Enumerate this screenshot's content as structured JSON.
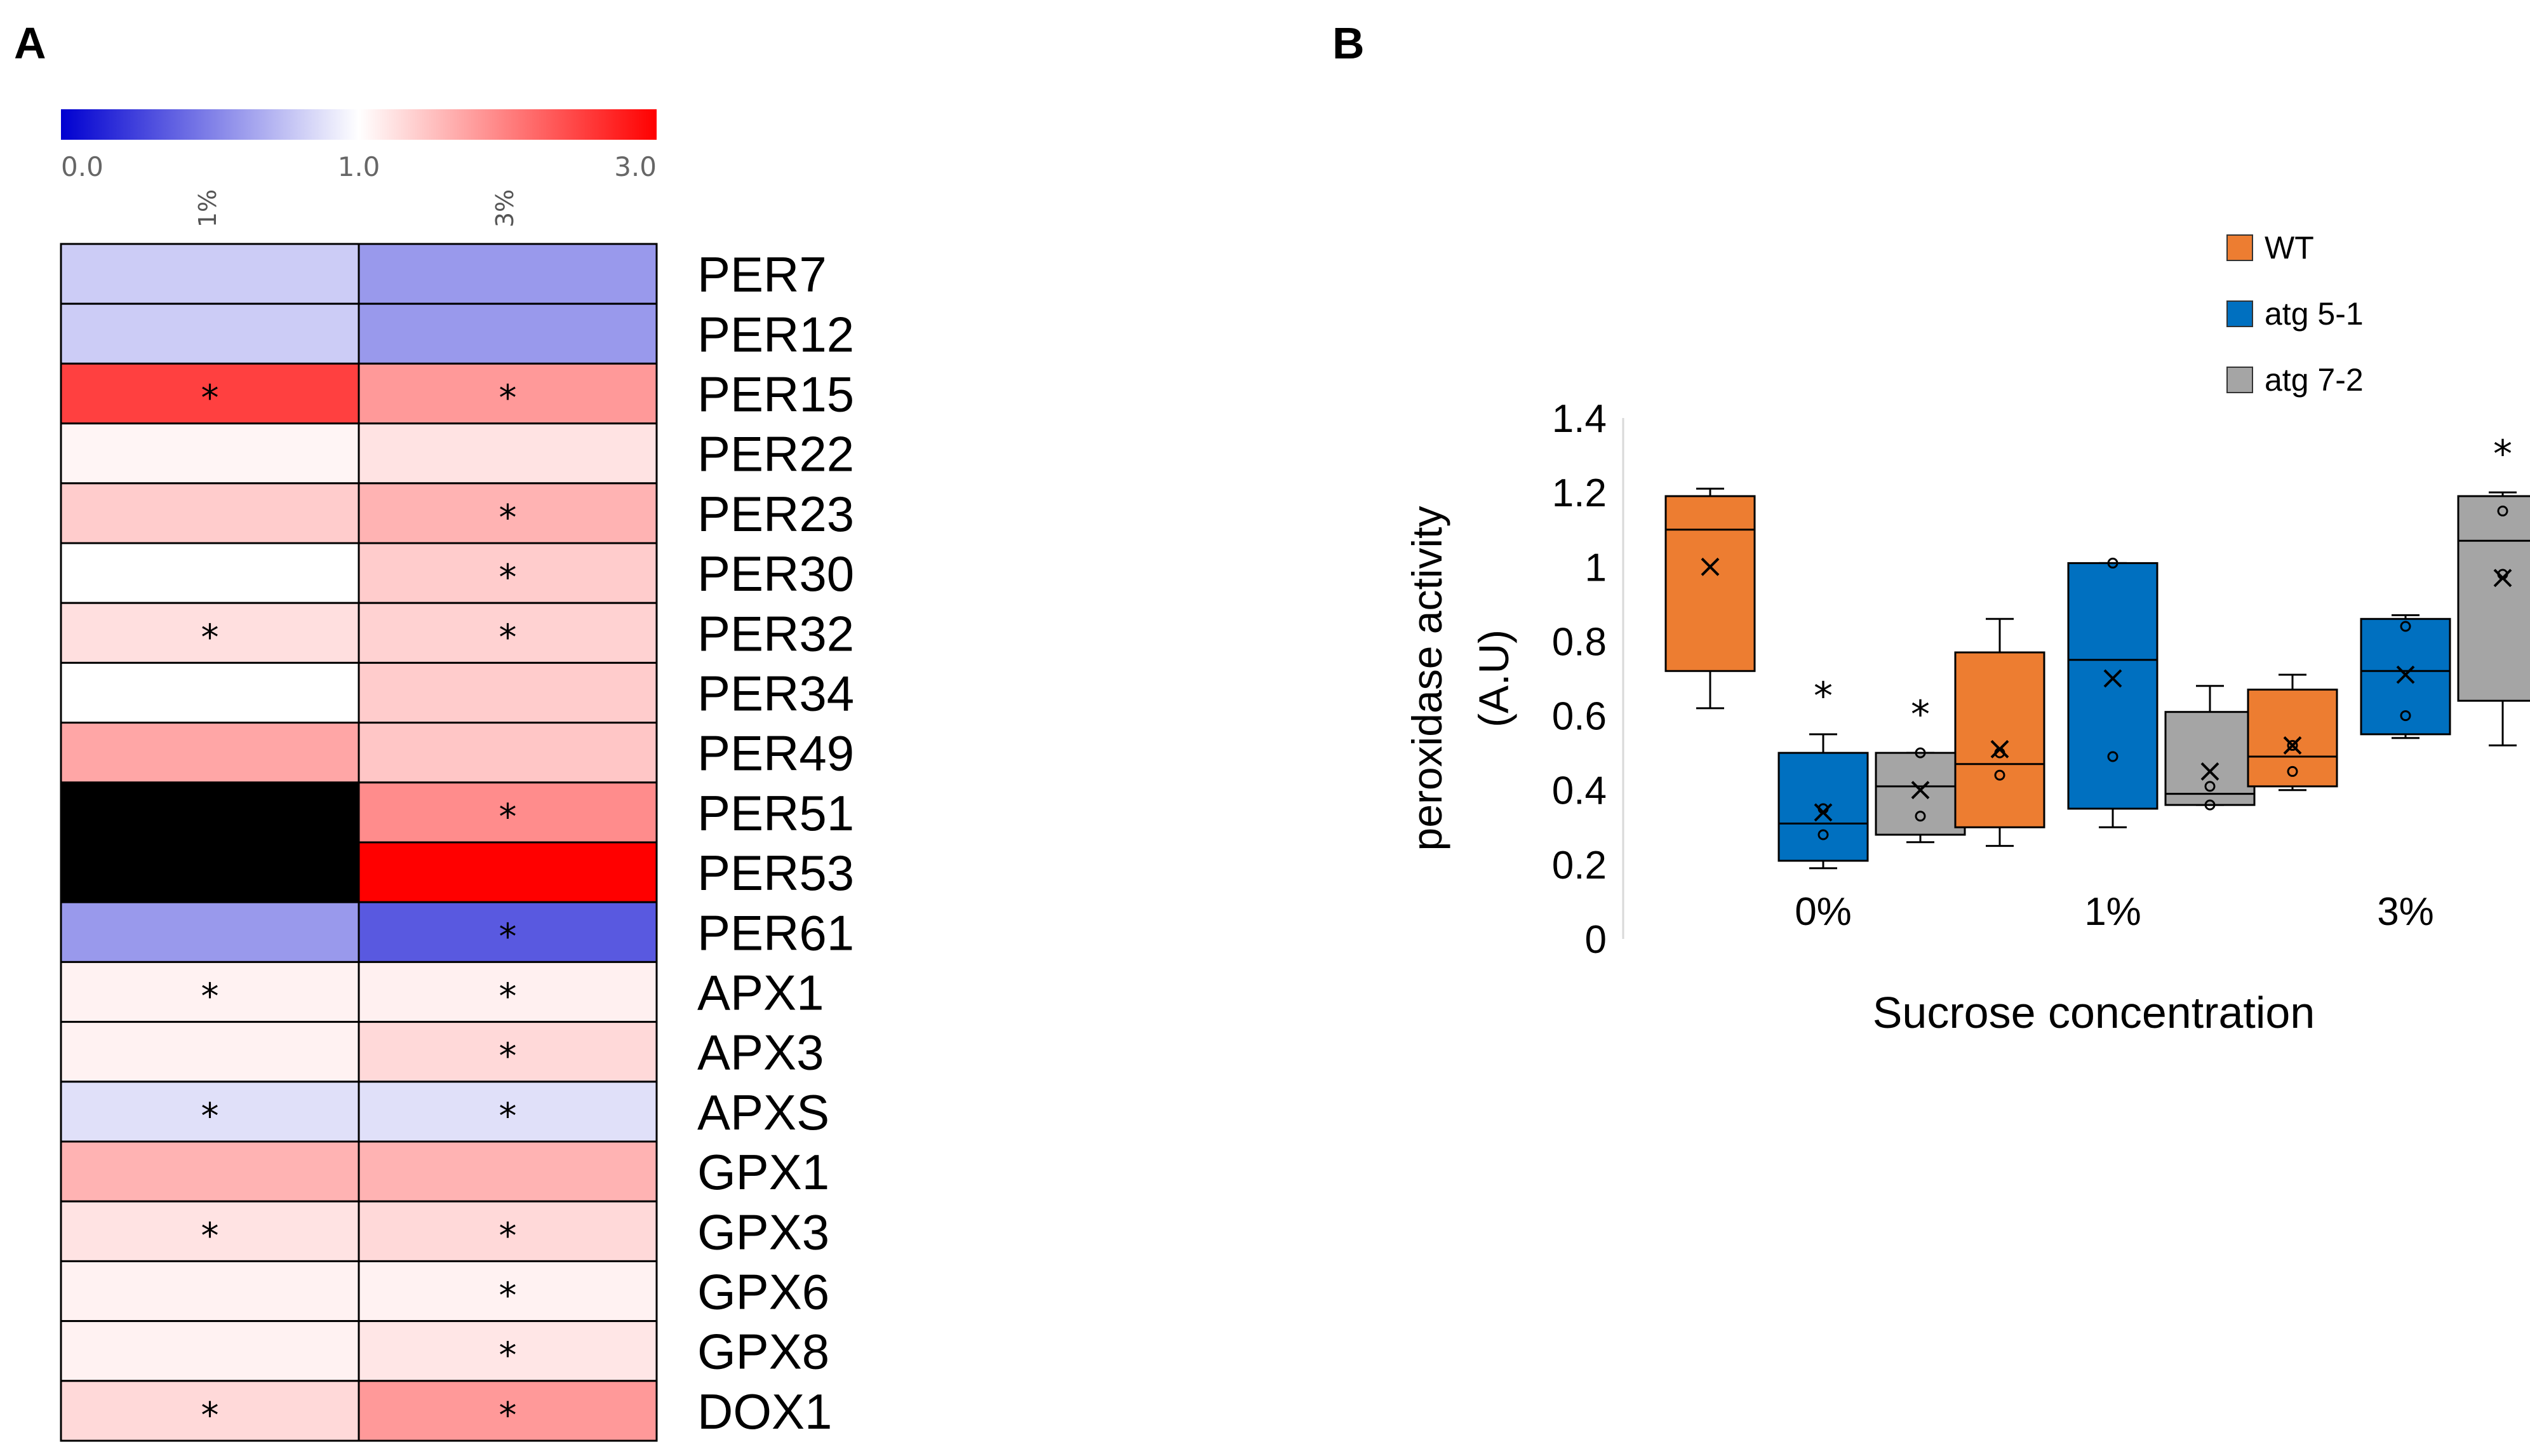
{
  "panels": {
    "a_label": "A",
    "b_label": "B"
  },
  "chart_data": [
    {
      "type": "heatmap",
      "panel": "A",
      "colorbar": {
        "ticks": [
          "0.0",
          "1.0",
          "3.0"
        ],
        "tick_values": [
          0,
          1,
          3
        ],
        "colors": {
          "low": "#0000d0",
          "mid": "#ffffff",
          "high": "#ff0000"
        }
      },
      "columns": [
        "1%",
        "3%"
      ],
      "missing_color": "#000000",
      "significance_mark": "*",
      "rows": [
        {
          "gene": "PER7",
          "values": [
            0.8,
            0.6
          ],
          "sig": [
            false,
            false
          ]
        },
        {
          "gene": "PER12",
          "values": [
            0.8,
            0.6
          ],
          "sig": [
            false,
            false
          ]
        },
        {
          "gene": "PER15",
          "values": [
            2.5,
            1.8
          ],
          "sig": [
            true,
            true
          ]
        },
        {
          "gene": "PER22",
          "values": [
            1.08,
            1.22
          ],
          "sig": [
            false,
            false
          ]
        },
        {
          "gene": "PER23",
          "values": [
            1.4,
            1.6
          ],
          "sig": [
            false,
            true
          ]
        },
        {
          "gene": "PER30",
          "values": [
            1.0,
            1.4
          ],
          "sig": [
            false,
            true
          ]
        },
        {
          "gene": "PER32",
          "values": [
            1.25,
            1.35
          ],
          "sig": [
            true,
            true
          ]
        },
        {
          "gene": "PER34",
          "values": [
            1.0,
            1.4
          ],
          "sig": [
            false,
            false
          ]
        },
        {
          "gene": "PER49",
          "values": [
            1.7,
            1.45
          ],
          "sig": [
            false,
            false
          ]
        },
        {
          "gene": "PER51",
          "values": [
            null,
            1.9
          ],
          "sig": [
            false,
            true
          ]
        },
        {
          "gene": "PER53",
          "values": [
            null,
            3.0
          ],
          "sig": [
            false,
            false
          ]
        },
        {
          "gene": "PER61",
          "values": [
            0.6,
            0.35
          ],
          "sig": [
            false,
            true
          ]
        },
        {
          "gene": "APX1",
          "values": [
            1.1,
            1.12
          ],
          "sig": [
            true,
            true
          ]
        },
        {
          "gene": "APX3",
          "values": [
            1.1,
            1.3
          ],
          "sig": [
            false,
            true
          ]
        },
        {
          "gene": "APXS",
          "values": [
            0.88,
            0.88
          ],
          "sig": [
            true,
            true
          ]
        },
        {
          "gene": "GPX1",
          "values": [
            1.6,
            1.6
          ],
          "sig": [
            false,
            false
          ]
        },
        {
          "gene": "GPX3",
          "values": [
            1.22,
            1.3
          ],
          "sig": [
            true,
            true
          ]
        },
        {
          "gene": "GPX6",
          "values": [
            1.1,
            1.1
          ],
          "sig": [
            false,
            true
          ]
        },
        {
          "gene": "GPX8",
          "values": [
            1.1,
            1.2
          ],
          "sig": [
            false,
            true
          ]
        },
        {
          "gene": "DOX1",
          "values": [
            1.3,
            1.8
          ],
          "sig": [
            true,
            true
          ]
        }
      ]
    },
    {
      "type": "box",
      "panel": "B",
      "ylabel_line1": "peroxidase activity",
      "ylabel_line2": "(A.U)",
      "xlabel": "Sucrose concentration",
      "ylim": [
        0,
        1.4
      ],
      "yticks": [
        "0",
        "0.2",
        "0.4",
        "0.6",
        "0.8",
        "1",
        "1.2",
        "1.4"
      ],
      "ytick_values": [
        0,
        0.2,
        0.4,
        0.6,
        0.8,
        1.0,
        1.2,
        1.4
      ],
      "categories": [
        "0%",
        "1%",
        "3%"
      ],
      "legend": [
        {
          "name": "WT",
          "color": "#ed7d31"
        },
        {
          "name": "atg 5-1",
          "color": "#0070c0"
        },
        {
          "name": "atg 7-2",
          "color": "#a5a5a5"
        }
      ],
      "significance_mark": "*",
      "boxes": [
        {
          "category": "0%",
          "series": "WT",
          "min": 0.62,
          "q1": 0.72,
          "median": 1.1,
          "q3": 1.19,
          "max": 1.21,
          "mean": 1.0,
          "points": [],
          "sig": false
        },
        {
          "category": "0%",
          "series": "atg 5-1",
          "min": 0.19,
          "q1": 0.21,
          "median": 0.31,
          "q3": 0.5,
          "max": 0.55,
          "mean": 0.34,
          "points": [
            0.28,
            0.35
          ],
          "sig": true
        },
        {
          "category": "0%",
          "series": "atg 7-2",
          "min": 0.26,
          "q1": 0.28,
          "median": 0.41,
          "q3": 0.5,
          "max": 0.5,
          "mean": 0.4,
          "points": [
            0.33,
            0.5
          ],
          "sig": true
        },
        {
          "category": "1%",
          "series": "WT",
          "min": 0.25,
          "q1": 0.3,
          "median": 0.47,
          "q3": 0.77,
          "max": 0.86,
          "mean": 0.51,
          "points": [
            0.44,
            0.5
          ],
          "sig": false
        },
        {
          "category": "1%",
          "series": "atg 5-1",
          "min": 0.3,
          "q1": 0.35,
          "median": 0.75,
          "q3": 1.01,
          "max": 1.01,
          "mean": 0.7,
          "points": [
            0.49,
            1.01
          ],
          "sig": false
        },
        {
          "category": "1%",
          "series": "atg 7-2",
          "min": 0.36,
          "q1": 0.36,
          "median": 0.39,
          "q3": 0.61,
          "max": 0.68,
          "mean": 0.45,
          "points": [
            0.36,
            0.41
          ],
          "sig": false
        },
        {
          "category": "3%",
          "series": "WT",
          "min": 0.4,
          "q1": 0.41,
          "median": 0.49,
          "q3": 0.67,
          "max": 0.71,
          "mean": 0.52,
          "points": [
            0.45,
            0.52
          ],
          "sig": false
        },
        {
          "category": "3%",
          "series": "atg 5-1",
          "min": 0.54,
          "q1": 0.55,
          "median": 0.72,
          "q3": 0.86,
          "max": 0.87,
          "mean": 0.71,
          "points": [
            0.6,
            0.84
          ],
          "sig": false
        },
        {
          "category": "3%",
          "series": "atg 7-2",
          "min": 0.52,
          "q1": 0.64,
          "median": 1.07,
          "q3": 1.19,
          "max": 1.2,
          "mean": 0.97,
          "points": [
            0.98,
            1.15
          ],
          "sig": true
        }
      ]
    }
  ]
}
